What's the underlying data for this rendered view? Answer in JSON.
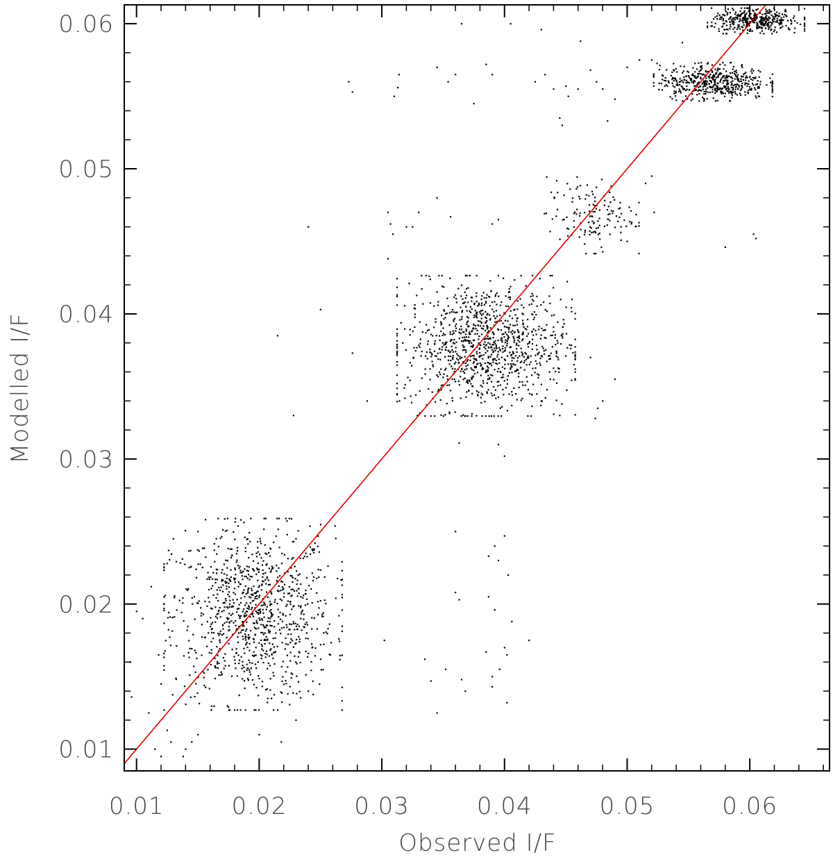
{
  "chart_data": {
    "type": "scatter",
    "xlabel": "Observed I/F",
    "ylabel": "Modelled I/F",
    "xlim": [
      0.009,
      0.0665
    ],
    "ylim": [
      0.0085,
      0.0613
    ],
    "x_ticks": [
      "0.01",
      "0.02",
      "0.03",
      "0.04",
      "0.05",
      "0.06"
    ],
    "y_ticks": [
      "0.01",
      "0.02",
      "0.03",
      "0.04",
      "0.05",
      "0.06"
    ],
    "x_tick_values": [
      0.01,
      0.02,
      0.03,
      0.04,
      0.05,
      0.06
    ],
    "y_tick_values": [
      0.01,
      0.02,
      0.03,
      0.04,
      0.05,
      0.06
    ],
    "grid": false,
    "point_color": "#000000",
    "line_color": "#e00000",
    "series": [
      {
        "type": "line",
        "x": [
          0.009,
          0.0613
        ],
        "y": [
          0.009,
          0.0613
        ]
      }
    ],
    "clusters": [
      {
        "cx": 0.0195,
        "cy": 0.0193,
        "sx": 0.0033,
        "sy": 0.003,
        "n": 1000
      },
      {
        "cx": 0.0385,
        "cy": 0.0378,
        "sx": 0.0033,
        "sy": 0.0022,
        "n": 1050
      },
      {
        "cx": 0.047,
        "cy": 0.0468,
        "sx": 0.0018,
        "sy": 0.0012,
        "n": 140
      },
      {
        "cx": 0.057,
        "cy": 0.056,
        "sx": 0.0022,
        "sy": 0.0006,
        "n": 500
      },
      {
        "cx": 0.0605,
        "cy": 0.0602,
        "sx": 0.0018,
        "sy": 0.0004,
        "n": 380
      }
    ],
    "outliers": [
      [
        0.0215,
        0.0385
      ],
      [
        0.024,
        0.046
      ],
      [
        0.0228,
        0.033
      ],
      [
        0.025,
        0.0403
      ],
      [
        0.0273,
        0.056
      ],
      [
        0.0276,
        0.0553
      ],
      [
        0.031,
        0.055
      ],
      [
        0.0313,
        0.0556
      ],
      [
        0.0314,
        0.0565
      ],
      [
        0.0354,
        0.056
      ],
      [
        0.036,
        0.0565
      ],
      [
        0.0345,
        0.057
      ],
      [
        0.0385,
        0.0572
      ],
      [
        0.039,
        0.0565
      ],
      [
        0.0375,
        0.0545
      ],
      [
        0.0305,
        0.047
      ],
      [
        0.0307,
        0.0462
      ],
      [
        0.0309,
        0.0455
      ],
      [
        0.032,
        0.046
      ],
      [
        0.0325,
        0.046
      ],
      [
        0.0305,
        0.0438
      ],
      [
        0.033,
        0.047
      ],
      [
        0.0345,
        0.048
      ],
      [
        0.0356,
        0.0467
      ],
      [
        0.039,
        0.0462
      ],
      [
        0.0395,
        0.0465
      ],
      [
        0.0433,
        0.0565
      ],
      [
        0.0425,
        0.056
      ],
      [
        0.044,
        0.0555
      ],
      [
        0.045,
        0.0557
      ],
      [
        0.0452,
        0.055
      ],
      [
        0.046,
        0.0555
      ],
      [
        0.047,
        0.0568
      ],
      [
        0.0475,
        0.056
      ],
      [
        0.048,
        0.0555
      ],
      [
        0.049,
        0.0548
      ],
      [
        0.0484,
        0.0533
      ],
      [
        0.0445,
        0.0535
      ],
      [
        0.0447,
        0.053
      ],
      [
        0.05,
        0.057
      ],
      [
        0.051,
        0.0575
      ],
      [
        0.052,
        0.0575
      ],
      [
        0.052,
        0.0495
      ],
      [
        0.0522,
        0.047
      ],
      [
        0.0515,
        0.049
      ],
      [
        0.05,
        0.045
      ],
      [
        0.0495,
        0.046
      ],
      [
        0.0545,
        0.0587
      ],
      [
        0.058,
        0.0446
      ],
      [
        0.0603,
        0.0455
      ],
      [
        0.0605,
        0.0452
      ],
      [
        0.0365,
        0.06
      ],
      [
        0.0405,
        0.06
      ],
      [
        0.043,
        0.0596
      ],
      [
        0.0462,
        0.0588
      ],
      [
        0.0474,
        0.0328
      ],
      [
        0.048,
        0.034
      ],
      [
        0.0476,
        0.0335
      ],
      [
        0.049,
        0.0355
      ],
      [
        0.047,
        0.037
      ],
      [
        0.043,
        0.034
      ],
      [
        0.0445,
        0.033
      ],
      [
        0.0455,
        0.041
      ],
      [
        0.036,
        0.025
      ],
      [
        0.0387,
        0.0233
      ],
      [
        0.0392,
        0.024
      ],
      [
        0.04,
        0.0247
      ],
      [
        0.0403,
        0.022
      ],
      [
        0.0395,
        0.023
      ],
      [
        0.036,
        0.0208
      ],
      [
        0.0363,
        0.0203
      ],
      [
        0.0387,
        0.0205
      ],
      [
        0.0392,
        0.0196
      ],
      [
        0.0406,
        0.0188
      ],
      [
        0.04,
        0.017
      ],
      [
        0.0402,
        0.0165
      ],
      [
        0.0396,
        0.0155
      ],
      [
        0.039,
        0.015
      ],
      [
        0.039,
        0.0143
      ],
      [
        0.0385,
        0.0167
      ],
      [
        0.0368,
        0.014
      ],
      [
        0.0365,
        0.0148
      ],
      [
        0.0352,
        0.0155
      ],
      [
        0.034,
        0.0147
      ],
      [
        0.0335,
        0.0162
      ],
      [
        0.0345,
        0.0125
      ],
      [
        0.0402,
        0.0132
      ],
      [
        0.042,
        0.0175
      ],
      [
        0.0302,
        0.0175
      ],
      [
        0.0288,
        0.034
      ],
      [
        0.0276,
        0.0373
      ],
      [
        0.0317,
        0.038
      ],
      [
        0.04,
        0.0302
      ],
      [
        0.0395,
        0.031
      ],
      [
        0.0363,
        0.0311
      ],
      [
        0.0265,
        0.0192
      ],
      [
        0.025,
        0.0172
      ],
      [
        0.0258,
        0.0165
      ],
      [
        0.024,
        0.014
      ],
      [
        0.023,
        0.012
      ],
      [
        0.0218,
        0.0105
      ],
      [
        0.021,
        0.0135
      ],
      [
        0.02,
        0.011
      ],
      [
        0.0096,
        0.0136
      ],
      [
        0.0095,
        0.016
      ],
      [
        0.01,
        0.0195
      ],
      [
        0.0105,
        0.019
      ],
      [
        0.011,
        0.0125
      ],
      [
        0.012,
        0.0145
      ],
      [
        0.0115,
        0.01
      ],
      [
        0.012,
        0.0095
      ],
      [
        0.013,
        0.0085
      ],
      [
        0.0138,
        0.0095
      ],
      [
        0.014,
        0.01
      ],
      [
        0.0145,
        0.0105
      ],
      [
        0.015,
        0.011
      ],
      [
        0.0128,
        0.0105
      ],
      [
        0.0125,
        0.0113
      ],
      [
        0.0118,
        0.0165
      ],
      [
        0.0112,
        0.0212
      ],
      [
        0.0125,
        0.0228
      ],
      [
        0.013,
        0.0245
      ],
      [
        0.015,
        0.025
      ],
      [
        0.0165,
        0.0245
      ],
      [
        0.0185,
        0.0258
      ],
      [
        0.0205,
        0.0235
      ],
      [
        0.023,
        0.0245
      ],
      [
        0.0238,
        0.0235
      ]
    ]
  }
}
